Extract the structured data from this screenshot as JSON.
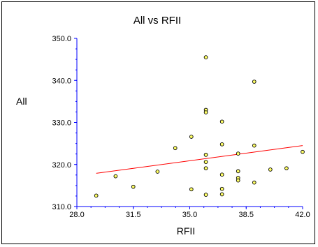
{
  "chart_data": {
    "type": "scatter",
    "title": "All vs RFII",
    "xlabel": "RFII",
    "ylabel": "All",
    "xlim": [
      28.0,
      42.0
    ],
    "ylim": [
      310.0,
      350.0
    ],
    "xticks": [
      28.0,
      31.5,
      35.0,
      38.5,
      42.0
    ],
    "yticks": [
      310.0,
      320.0,
      330.0,
      340.0,
      350.0
    ],
    "xtick_labels": [
      "28.0",
      "31.5",
      "35.0",
      "38.5",
      "42.0"
    ],
    "ytick_labels": [
      "310.0",
      "320.0",
      "330.0",
      "340.0",
      "350.0"
    ],
    "grid": false,
    "points": [
      {
        "x": 29.2,
        "y": 312.6
      },
      {
        "x": 30.4,
        "y": 317.2
      },
      {
        "x": 31.5,
        "y": 314.7
      },
      {
        "x": 33.0,
        "y": 318.3
      },
      {
        "x": 34.1,
        "y": 323.9
      },
      {
        "x": 35.1,
        "y": 326.6
      },
      {
        "x": 35.1,
        "y": 314.1
      },
      {
        "x": 36.0,
        "y": 345.5
      },
      {
        "x": 36.0,
        "y": 333.0
      },
      {
        "x": 36.0,
        "y": 332.4
      },
      {
        "x": 36.0,
        "y": 322.3
      },
      {
        "x": 36.0,
        "y": 320.6
      },
      {
        "x": 36.0,
        "y": 319.1
      },
      {
        "x": 36.0,
        "y": 312.8
      },
      {
        "x": 37.0,
        "y": 330.2
      },
      {
        "x": 37.0,
        "y": 324.8
      },
      {
        "x": 37.0,
        "y": 317.6
      },
      {
        "x": 37.0,
        "y": 314.2
      },
      {
        "x": 37.0,
        "y": 312.9
      },
      {
        "x": 38.0,
        "y": 322.6
      },
      {
        "x": 38.0,
        "y": 318.4
      },
      {
        "x": 38.0,
        "y": 316.8
      },
      {
        "x": 38.0,
        "y": 316.2
      },
      {
        "x": 39.0,
        "y": 339.7
      },
      {
        "x": 39.0,
        "y": 324.5
      },
      {
        "x": 39.0,
        "y": 315.7
      },
      {
        "x": 40.0,
        "y": 318.8
      },
      {
        "x": 41.0,
        "y": 319.1
      },
      {
        "x": 42.0,
        "y": 323.0
      }
    ],
    "trendline": {
      "x": [
        29.2,
        42.0
      ],
      "y": [
        317.9,
        324.5
      ]
    },
    "colors": {
      "point_fill": "#ffff66",
      "point_stroke": "#000000",
      "trendline": "#ff0000",
      "axis": "#0000ff"
    }
  }
}
